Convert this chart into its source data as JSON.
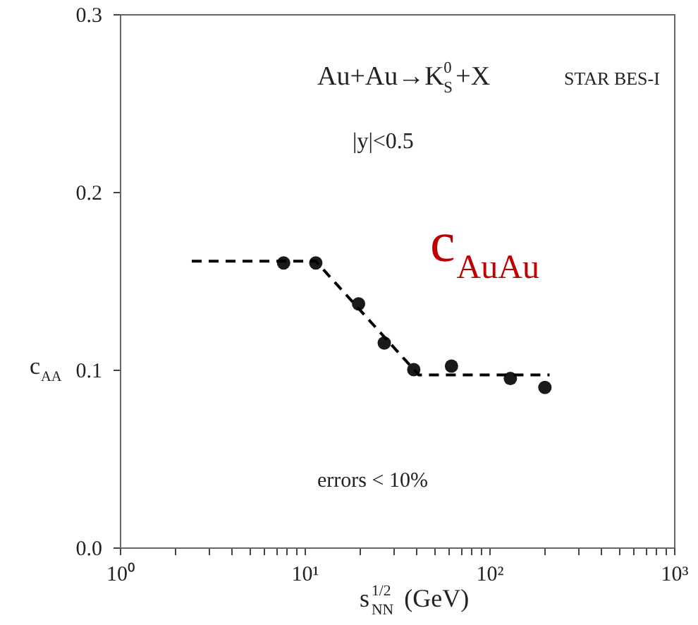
{
  "chart_data": {
    "type": "scatter",
    "xlabel": "s$_{NN}$$^{1/2}$ (GeV)",
    "ylabel": "c$_{AA}$",
    "xlim": [
      1,
      1000
    ],
    "ylim": [
      0,
      0.3
    ],
    "log": "x",
    "grid": false,
    "marker": "circle",
    "xticks": [
      {
        "value": 1,
        "label": "10⁰"
      },
      {
        "value": 2,
        "label": null
      },
      {
        "value": 3,
        "label": null
      },
      {
        "value": 4,
        "label": null
      },
      {
        "value": 5,
        "label": null
      },
      {
        "value": 6,
        "label": null
      },
      {
        "value": 7,
        "label": null
      },
      {
        "value": 8,
        "label": null
      },
      {
        "value": 9,
        "label": null
      },
      {
        "value": 10,
        "label": "10¹"
      },
      {
        "value": 20,
        "label": null
      },
      {
        "value": 30,
        "label": null
      },
      {
        "value": 40,
        "label": null
      },
      {
        "value": 50,
        "label": null
      },
      {
        "value": 60,
        "label": null
      },
      {
        "value": 70,
        "label": null
      },
      {
        "value": 80,
        "label": null
      },
      {
        "value": 90,
        "label": null
      },
      {
        "value": 100,
        "label": "10²"
      },
      {
        "value": 200,
        "label": null
      },
      {
        "value": 300,
        "label": null
      },
      {
        "value": 400,
        "label": null
      },
      {
        "value": 500,
        "label": null
      },
      {
        "value": 600,
        "label": null
      },
      {
        "value": 700,
        "label": null
      },
      {
        "value": 800,
        "label": null
      },
      {
        "value": 900,
        "label": null
      },
      {
        "value": 1000,
        "label": "10³"
      }
    ],
    "yticks": [
      {
        "value": 0,
        "label": "0.0"
      },
      {
        "value": 0.1,
        "label": "0.1"
      },
      {
        "value": 0.2,
        "label": "0.2"
      },
      {
        "value": 0.3,
        "label": "0.3"
      }
    ],
    "series": [
      {
        "type": "scatter",
        "color": "#1a1a1a",
        "x": [
          7.7,
          11.5,
          19.6,
          27,
          39,
          62.4,
          130,
          200
        ],
        "values": [
          0.16,
          0.16,
          0.137,
          0.115,
          0.1,
          0.102,
          0.095,
          0.09
        ]
      },
      {
        "type": "line",
        "color": "#000000",
        "line_style": "dashed",
        "marker": "none",
        "x": [
          2.45,
          11.5,
          41.5,
          212
        ],
        "values": [
          0.161,
          0.161,
          0.097,
          0.097
        ]
      }
    ],
    "annotations": [
      "Au+Au→K$^{0}$$_{S}$+X",
      "STAR BES-I",
      "|y|<0.5",
      "c$_{AuAu}$",
      "errors < 10%"
    ]
  }
}
